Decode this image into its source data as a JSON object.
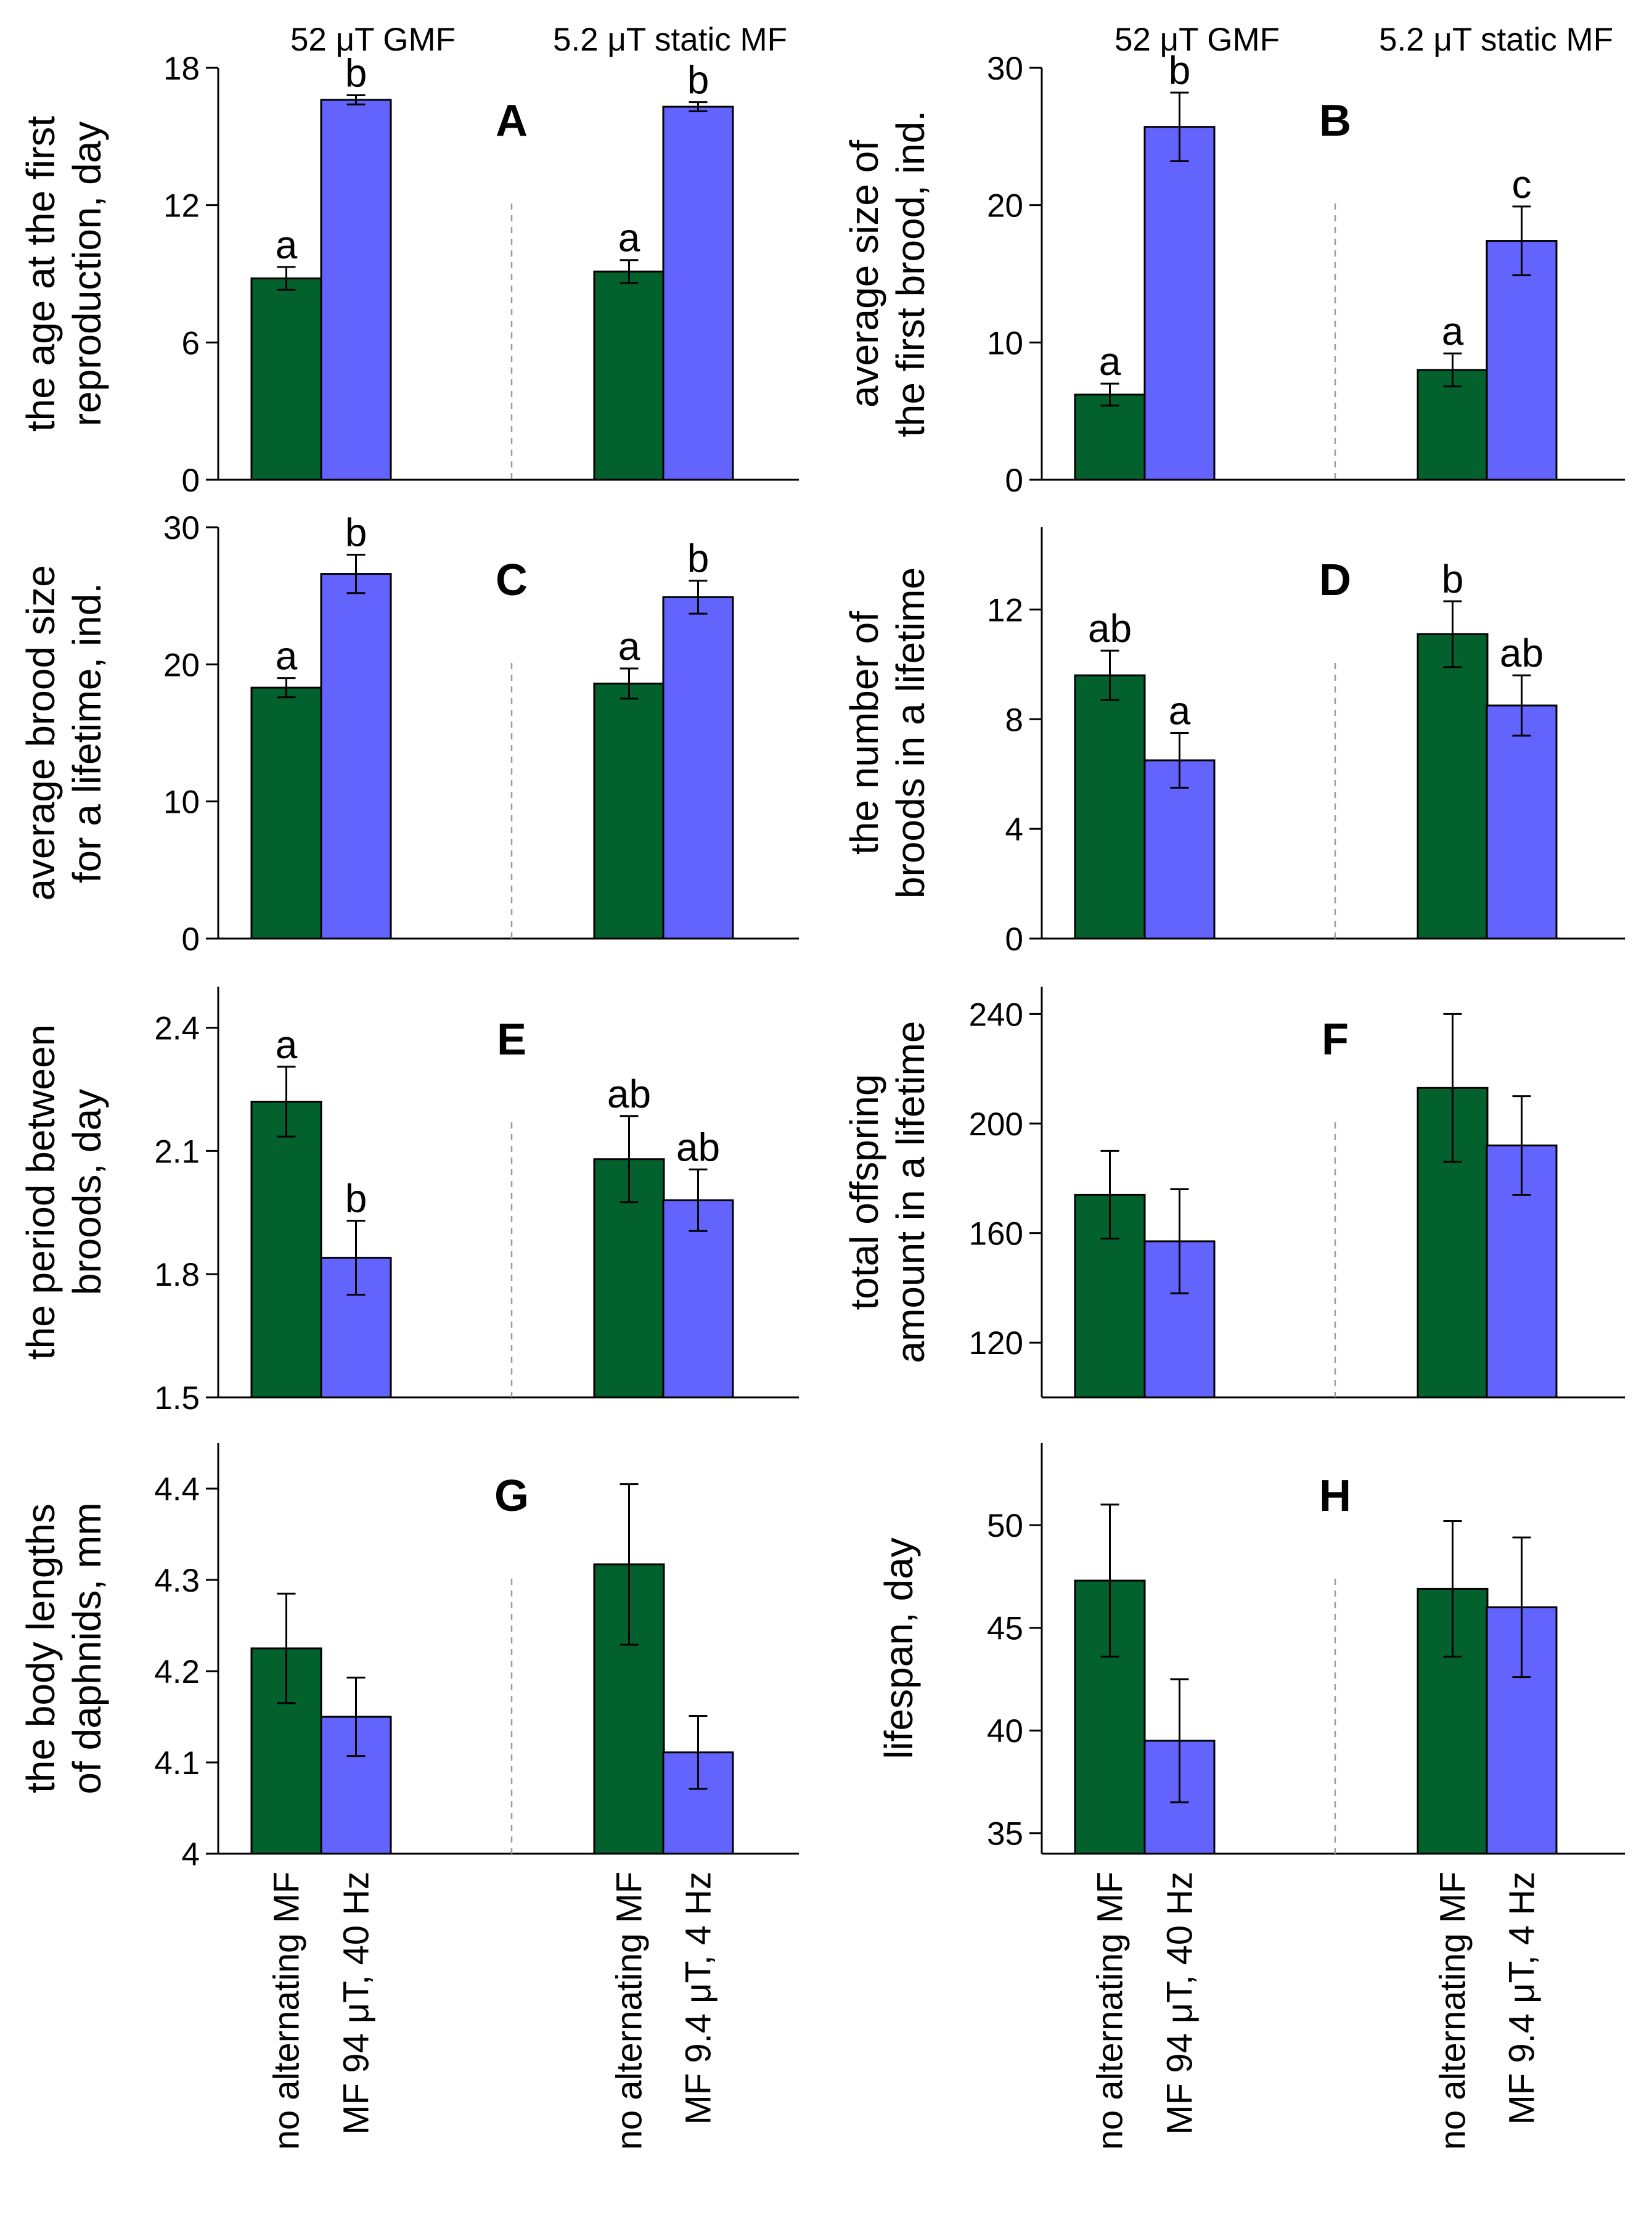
{
  "colors": {
    "control": "#03612d",
    "treatment": "#6363fd"
  },
  "group_headers": [
    "52 μT GMF",
    "5.2 μT static MF"
  ],
  "x_categories": [
    "no alternating MF",
    "MF 94 μT, 40 Hz",
    "no alternating MF",
    "MF 9.4 μT, 4 Hz"
  ],
  "chart_data": [
    {
      "panel": "A",
      "type": "bar",
      "ylabel": [
        "the age at the first",
        "reproduction, day"
      ],
      "ylim": [
        0,
        18
      ],
      "yticks": [
        0,
        6,
        12,
        18
      ],
      "tick_labels": [
        "0",
        "6",
        "12",
        "18"
      ],
      "groups": [
        "52 μT GMF",
        "5.2 μT static MF"
      ],
      "series": [
        {
          "name": "no alternating MF",
          "values": [
            8.8,
            9.1
          ],
          "errors": [
            0.5,
            0.5
          ]
        },
        {
          "name": "alternating MF",
          "values": [
            16.6,
            16.3
          ],
          "errors": [
            0.2,
            0.2
          ]
        }
      ],
      "letters": [
        [
          "a",
          "a"
        ],
        [
          "b",
          "b"
        ]
      ]
    },
    {
      "panel": "B",
      "type": "bar",
      "ylabel": [
        "average size of",
        "the first brood, ind."
      ],
      "ylim": [
        0,
        30
      ],
      "yticks": [
        0,
        10,
        20,
        30
      ],
      "tick_labels": [
        "0",
        "10",
        "20",
        "30"
      ],
      "groups": [
        "52 μT GMF",
        "5.2 μT static MF"
      ],
      "series": [
        {
          "name": "no alternating MF",
          "values": [
            6.2,
            8.0
          ],
          "errors": [
            0.8,
            1.2
          ]
        },
        {
          "name": "alternating MF",
          "values": [
            25.7,
            17.4
          ],
          "errors": [
            2.5,
            2.5
          ]
        }
      ],
      "letters": [
        [
          "a",
          "a"
        ],
        [
          "b",
          "c"
        ]
      ]
    },
    {
      "panel": "C",
      "type": "bar",
      "ylabel": [
        "average brood size",
        "for a lifetime, ind."
      ],
      "ylim": [
        0,
        30
      ],
      "yticks": [
        0,
        10,
        20,
        30
      ],
      "tick_labels": [
        "0",
        "10",
        "20",
        "30"
      ],
      "groups": [
        "52 μT GMF",
        "5.2 μT static MF"
      ],
      "series": [
        {
          "name": "no alternating MF",
          "values": [
            18.3,
            18.6
          ],
          "errors": [
            0.7,
            1.1
          ]
        },
        {
          "name": "alternating MF",
          "values": [
            26.6,
            24.9
          ],
          "errors": [
            1.4,
            1.2
          ]
        }
      ],
      "letters": [
        [
          "a",
          "a"
        ],
        [
          "b",
          "b"
        ]
      ]
    },
    {
      "panel": "D",
      "type": "bar",
      "ylabel": [
        "the number of",
        "broods in a lifetime"
      ],
      "ylim": [
        0,
        15
      ],
      "yticks": [
        0,
        4,
        8,
        12
      ],
      "tick_labels": [
        "0",
        "4",
        "8",
        "12"
      ],
      "groups": [
        "52 μT GMF",
        "5.2 μT static MF"
      ],
      "series": [
        {
          "name": "no alternating MF",
          "values": [
            9.6,
            11.1
          ],
          "errors": [
            0.9,
            1.2
          ]
        },
        {
          "name": "alternating MF",
          "values": [
            6.5,
            8.5
          ],
          "errors": [
            1.0,
            1.1
          ]
        }
      ],
      "letters": [
        [
          "ab",
          "b"
        ],
        [
          "a",
          "ab"
        ]
      ]
    },
    {
      "panel": "E",
      "type": "bar",
      "ylabel": [
        "the period between",
        "broods, day"
      ],
      "ylim": [
        1.5,
        2.5
      ],
      "yticks": [
        1.5,
        1.8,
        2.1,
        2.4
      ],
      "tick_labels": [
        "1.5",
        "1.8",
        "2.1",
        "2.4"
      ],
      "groups": [
        "52 μT GMF",
        "5.2 μT static MF"
      ],
      "series": [
        {
          "name": "no alternating MF",
          "values": [
            2.22,
            2.08
          ],
          "errors": [
            0.085,
            0.105
          ]
        },
        {
          "name": "alternating MF",
          "values": [
            1.84,
            1.98
          ],
          "errors": [
            0.09,
            0.075
          ]
        }
      ],
      "letters": [
        [
          "a",
          "ab"
        ],
        [
          "b",
          "ab"
        ]
      ]
    },
    {
      "panel": "F",
      "type": "bar",
      "ylabel": [
        "total offspring",
        "amount in a lifetime"
      ],
      "ylim": [
        100,
        250
      ],
      "yticks": [
        120,
        160,
        200,
        240
      ],
      "tick_labels": [
        "120",
        "160",
        "200",
        "240"
      ],
      "groups": [
        "52 μT GMF",
        "5.2 μT static MF"
      ],
      "series": [
        {
          "name": "no alternating MF",
          "values": [
            174,
            213
          ],
          "errors": [
            16,
            27
          ]
        },
        {
          "name": "alternating MF",
          "values": [
            157,
            192
          ],
          "errors": [
            19,
            18
          ]
        }
      ],
      "letters": [
        [
          "",
          ""
        ],
        [
          "",
          ""
        ]
      ]
    },
    {
      "panel": "G",
      "type": "bar",
      "ylabel": [
        "the body lengths",
        "of daphnids, mm"
      ],
      "ylim": [
        4.0,
        4.45
      ],
      "yticks": [
        4.0,
        4.1,
        4.2,
        4.3,
        4.4
      ],
      "tick_labels": [
        "4",
        "4.1",
        "4.2",
        "4.3",
        "4.4"
      ],
      "groups": [
        "52 μT GMF",
        "5.2 μT static MF"
      ],
      "series": [
        {
          "name": "no alternating MF",
          "values": [
            4.225,
            4.317
          ],
          "errors": [
            0.06,
            0.088
          ]
        },
        {
          "name": "alternating MF",
          "values": [
            4.15,
            4.111
          ],
          "errors": [
            0.043,
            0.04
          ]
        }
      ],
      "letters": [
        [
          "",
          ""
        ],
        [
          "",
          ""
        ]
      ]
    },
    {
      "panel": "H",
      "type": "bar",
      "ylabel": [
        "lifespan, day"
      ],
      "ylim": [
        34,
        54
      ],
      "yticks": [
        35,
        40,
        45,
        50
      ],
      "tick_labels": [
        "35",
        "40",
        "45",
        "50"
      ],
      "groups": [
        "52 μT GMF",
        "5.2 μT static MF"
      ],
      "series": [
        {
          "name": "no alternating MF",
          "values": [
            47.3,
            46.9
          ],
          "errors": [
            3.7,
            3.3
          ]
        },
        {
          "name": "alternating MF",
          "values": [
            39.5,
            46.0
          ],
          "errors": [
            3.0,
            3.4
          ]
        }
      ],
      "letters": [
        [
          "",
          ""
        ],
        [
          "",
          ""
        ]
      ]
    }
  ]
}
